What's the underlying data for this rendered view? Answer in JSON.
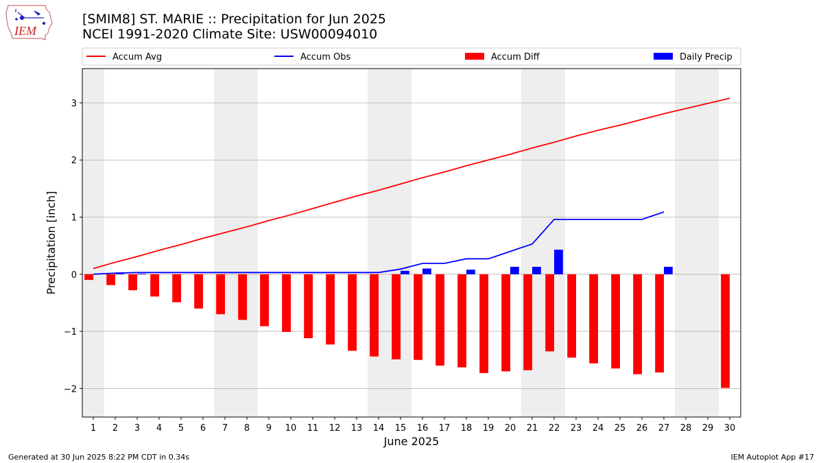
{
  "header": {
    "title_line1": "[SMIM8] ST. MARIE :: Precipitation for Jun 2025",
    "title_line2": "NCEI 1991-2020 Climate Site: USW00094010",
    "logo_text": "IEM"
  },
  "footer": {
    "generated": "Generated at 30 Jun 2025 8:22 PM CDT in 0.34s",
    "app": "IEM Autoplot App #17"
  },
  "colors": {
    "accum_avg": "#ff0000",
    "accum_obs": "#0000ff",
    "accum_diff": "#ff0000",
    "daily_precip": "#0000ff",
    "weekend_shade": "#eeeeee",
    "grid": "#b0b0b0"
  },
  "chart_data": {
    "type": "bar",
    "xlabel": "June 2025",
    "ylabel": "Precipitation [inch]",
    "ylim": [
      -2.5,
      3.6
    ],
    "xlim": [
      0.5,
      30.5
    ],
    "y_ticks": [
      -2,
      -1,
      0,
      1,
      2,
      3
    ],
    "y_tick_labels": [
      "−2",
      "−1",
      "0",
      "1",
      "2",
      "3"
    ],
    "x_ticks": [
      1,
      2,
      3,
      4,
      5,
      6,
      7,
      8,
      9,
      10,
      11,
      12,
      13,
      14,
      15,
      16,
      17,
      18,
      19,
      20,
      21,
      22,
      23,
      24,
      25,
      26,
      27,
      28,
      29,
      30
    ],
    "grid": "horizontal",
    "legend_placement": "top, above plot",
    "weekend_shaded_days": [
      1,
      7,
      8,
      14,
      15,
      21,
      22,
      28,
      29
    ],
    "days": [
      1,
      2,
      3,
      4,
      5,
      6,
      7,
      8,
      9,
      10,
      11,
      12,
      13,
      14,
      15,
      16,
      17,
      18,
      19,
      20,
      21,
      22,
      23,
      24,
      25,
      26,
      27,
      28,
      29,
      30
    ],
    "series": [
      {
        "name": "Accum Avg",
        "kind": "line",
        "values": [
          0.1,
          0.21,
          0.31,
          0.42,
          0.52,
          0.63,
          0.73,
          0.83,
          0.94,
          1.04,
          1.15,
          1.26,
          1.37,
          1.47,
          1.58,
          1.69,
          1.79,
          1.9,
          2.0,
          2.1,
          2.21,
          2.31,
          2.42,
          2.52,
          2.61,
          2.71,
          2.81,
          2.9,
          2.99,
          3.08
        ]
      },
      {
        "name": "Accum Obs",
        "kind": "line",
        "values": [
          0.0,
          0.02,
          0.03,
          0.03,
          0.03,
          0.03,
          0.03,
          0.03,
          0.03,
          0.03,
          0.03,
          0.03,
          0.03,
          0.03,
          0.09,
          0.19,
          0.19,
          0.27,
          0.27,
          0.4,
          0.53,
          0.96,
          0.96,
          0.96,
          0.96,
          0.96,
          1.09,
          null,
          null,
          null
        ]
      },
      {
        "name": "Accum Diff",
        "kind": "bar",
        "values": [
          -0.1,
          -0.19,
          -0.28,
          -0.39,
          -0.49,
          -0.6,
          -0.7,
          -0.8,
          -0.91,
          -1.01,
          -1.12,
          -1.23,
          -1.34,
          -1.44,
          -1.49,
          -1.5,
          -1.6,
          -1.63,
          -1.73,
          -1.7,
          -1.68,
          -1.35,
          -1.46,
          -1.56,
          -1.65,
          -1.75,
          -1.72,
          null,
          null,
          -1.99
        ]
      },
      {
        "name": "Daily Precip",
        "kind": "bar",
        "values": [
          0,
          0.02,
          0.01,
          0,
          0,
          0,
          0,
          0,
          0,
          0,
          0,
          0,
          0,
          0,
          0.06,
          0.1,
          0,
          0.08,
          0,
          0.13,
          0.13,
          0.43,
          0,
          0,
          0,
          0,
          0.13,
          0,
          0,
          0
        ]
      }
    ]
  }
}
